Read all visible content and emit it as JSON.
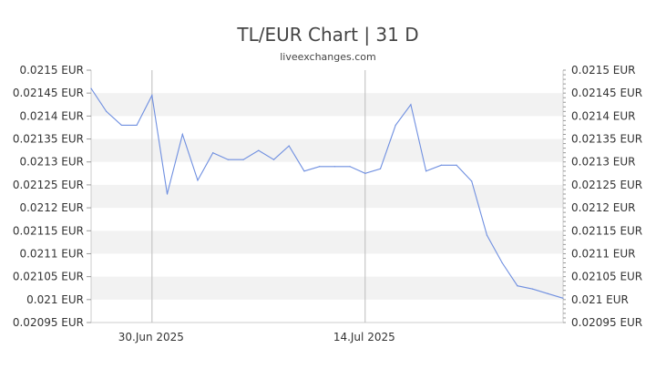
{
  "chart_data": {
    "type": "line",
    "title": "TL/EUR Chart | 31 D",
    "subtitle": "liveexchanges.com",
    "xlabel": "",
    "ylabel": "",
    "y_unit": "EUR",
    "ylim": [
      0.02095,
      0.0215
    ],
    "y_ticks": [
      "0.0215 EUR",
      "0.02145 EUR",
      "0.0214 EUR",
      "0.02135 EUR",
      "0.0213 EUR",
      "0.02125 EUR",
      "0.0212 EUR",
      "0.02115 EUR",
      "0.0211 EUR",
      "0.02105 EUR",
      "0.021 EUR",
      "0.02095 EUR"
    ],
    "y_tick_values": [
      0.0215,
      0.02145,
      0.0214,
      0.02135,
      0.0213,
      0.02125,
      0.0212,
      0.02115,
      0.0211,
      0.02105,
      0.021,
      0.02095
    ],
    "x_tick_labels": [
      {
        "label": "30.Jun 2025",
        "index": 4
      },
      {
        "label": "14.Jul 2025",
        "index": 18
      }
    ],
    "series": [
      {
        "color": "#6f8fe0",
        "values": [
          0.02146,
          0.02141,
          0.02138,
          0.02138,
          0.021445,
          0.02123,
          0.02136,
          0.02126,
          0.02132,
          0.021305,
          0.021305,
          0.021325,
          0.021305,
          0.021335,
          0.02128,
          0.02129,
          0.02129,
          0.02129,
          0.021275,
          0.021285,
          0.02138,
          0.021425,
          0.02128,
          0.021293,
          0.021293,
          0.021258,
          0.02114,
          0.02108,
          0.02103,
          0.021023,
          0.021013,
          0.021003
        ]
      }
    ],
    "grid": true,
    "band_color": "#f2f2f2",
    "legend": "none"
  }
}
